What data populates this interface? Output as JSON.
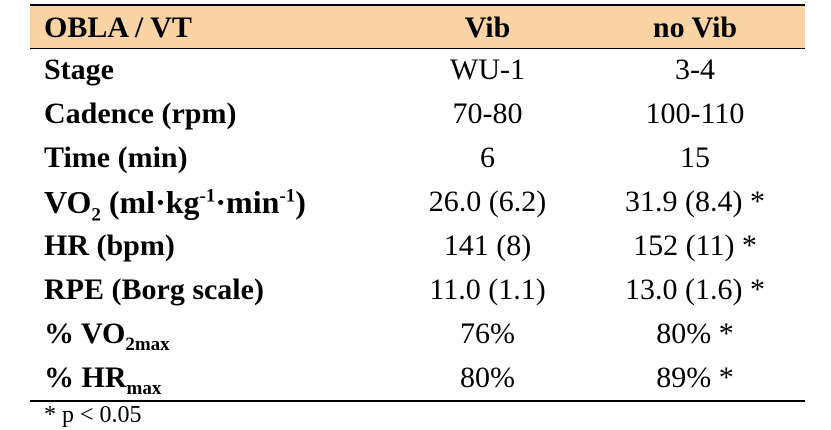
{
  "table": {
    "header": [
      "OBLA / VT",
      "Vib",
      "no Vib"
    ],
    "rows": [
      {
        "label": [
          "Stage"
        ],
        "vib": "WU-1",
        "no_vib": "3-4"
      },
      {
        "label": [
          "Cadence (rpm)"
        ],
        "vib": "70-80",
        "no_vib": "100-110"
      },
      {
        "label": [
          "Time (min)"
        ],
        "vib": "6",
        "no_vib": "15"
      },
      {
        "label": [
          "VO",
          "2",
          " (ml·kg",
          "-1",
          "·min",
          "-1",
          ")"
        ],
        "vib": "26.0 (6.2)",
        "no_vib": "31.9 (8.4) *"
      },
      {
        "label": [
          "HR (bpm)"
        ],
        "vib": "141 (8)",
        "no_vib": "152 (11) *"
      },
      {
        "label": [
          "RPE (Borg scale)"
        ],
        "vib": "11.0 (1.1)",
        "no_vib": "13.0 (1.6) *"
      },
      {
        "label": [
          "% VO",
          "2max"
        ],
        "vib": "76%",
        "no_vib": "80% *"
      },
      {
        "label": [
          "% HR",
          "max"
        ],
        "vib": "80%",
        "no_vib": "89% *"
      }
    ]
  },
  "footnote": "* p < 0.05"
}
